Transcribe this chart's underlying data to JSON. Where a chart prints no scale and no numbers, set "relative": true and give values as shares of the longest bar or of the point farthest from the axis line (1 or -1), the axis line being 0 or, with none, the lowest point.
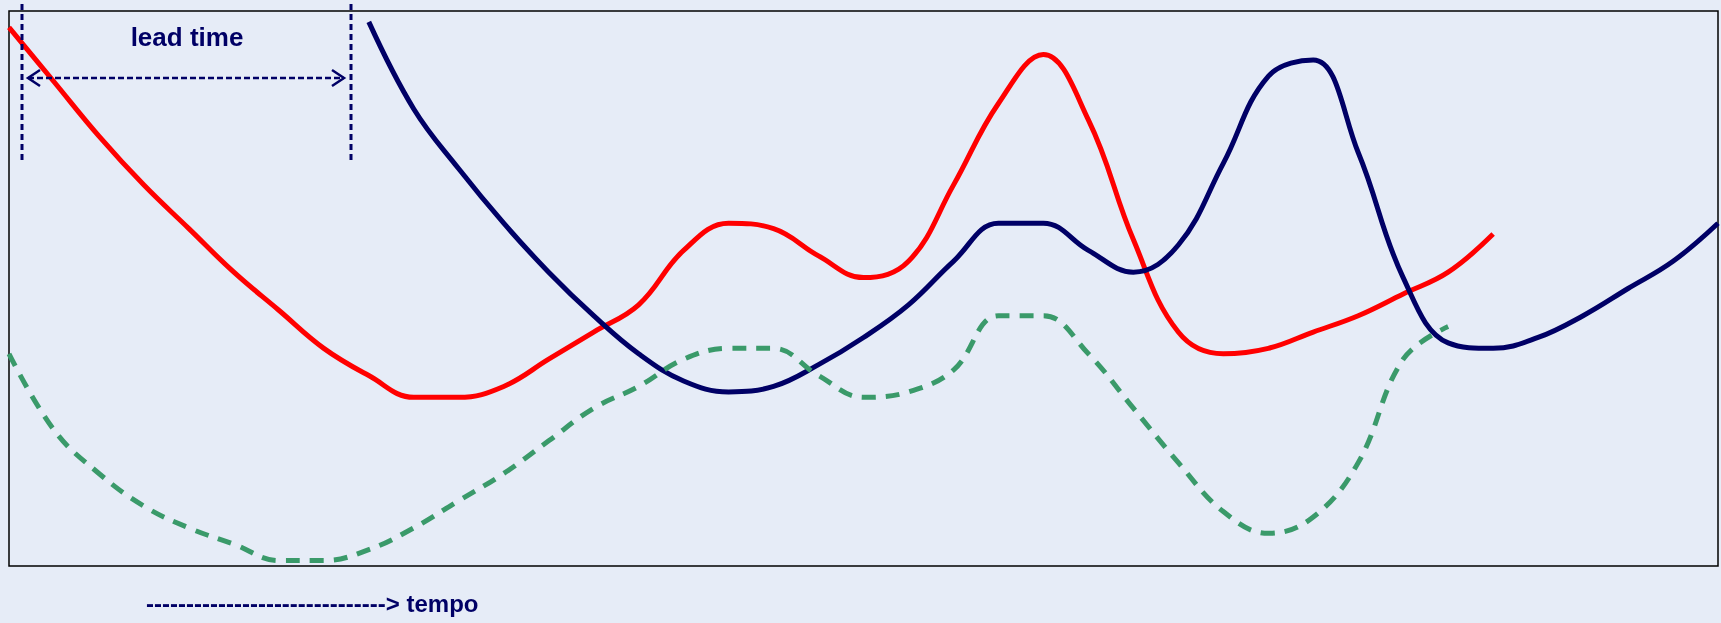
{
  "chart_data": {
    "type": "line",
    "relative": true,
    "xlabel": "------------------------------> tempo",
    "annotations": [
      "lead time"
    ],
    "marker": "none",
    "categories": [
      null,
      null,
      null,
      null,
      null,
      null,
      null,
      null,
      null,
      null,
      null,
      null,
      null,
      null,
      null,
      null,
      null,
      null,
      null,
      null,
      null,
      null,
      null,
      null,
      null,
      null,
      null,
      null,
      null,
      null,
      null,
      null,
      null,
      null,
      null,
      null,
      null,
      null,
      null
    ],
    "series": [
      {
        "color": "#ff0000",
        "line_style": "solid",
        "values": [
          0.99,
          0.89,
          0.79,
          0.7,
          0.62,
          0.54,
          0.47,
          0.4,
          0.35,
          0.31,
          0.31,
          0.33,
          0.38,
          0.43,
          0.48,
          0.58,
          0.63,
          0.62,
          0.57,
          0.53,
          0.56,
          0.7,
          0.85,
          0.94,
          0.82,
          0.6,
          0.43,
          0.39,
          0.4,
          0.43,
          0.46,
          0.5,
          0.54,
          0.61,
          null,
          null,
          null,
          null,
          null
        ]
      },
      {
        "color": "#000066",
        "line_style": "solid",
        "values": [
          null,
          null,
          null,
          null,
          null,
          null,
          null,
          null,
          1,
          0.84,
          0.73,
          0.63,
          0.54,
          0.46,
          0.39,
          0.34,
          0.32,
          0.33,
          0.37,
          0.42,
          0.48,
          0.56,
          0.63,
          0.63,
          0.58,
          0.54,
          0.59,
          0.74,
          0.9,
          0.93,
          0.76,
          0.53,
          0.41,
          0.4,
          0.42,
          0.46,
          0.51,
          0.56,
          0.63
        ]
      },
      {
        "color": "#3a9a6a",
        "line_style": "dashed",
        "values": [
          0.39,
          0.25,
          0.17,
          0.11,
          0.07,
          0.04,
          0.01,
          0.01,
          0.03,
          0.07,
          0.12,
          0.17,
          0.23,
          0.29,
          0.33,
          0.38,
          0.4,
          0.4,
          0.35,
          0.31,
          0.32,
          0.36,
          0.46,
          0.46,
          0.39,
          0.29,
          0.19,
          0.1,
          0.06,
          0.09,
          0.19,
          0.38,
          0.44,
          null,
          null,
          null,
          null,
          null,
          null
        ]
      }
    ]
  }
}
